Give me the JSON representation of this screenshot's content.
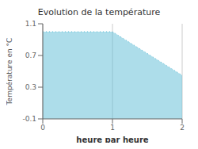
{
  "chart_data": {
    "type": "area",
    "title": "Evolution de la température",
    "xlabel": "heure par heure",
    "ylabel": "Température en °C",
    "x": [
      0,
      1,
      2
    ],
    "values": [
      1.0,
      1.0,
      0.45
    ],
    "color": "#5bbcd6",
    "line_style": "dotted",
    "xlim": [
      0,
      2
    ],
    "ylim": [
      -0.1,
      1.1
    ],
    "xticks": [
      0,
      1,
      2
    ],
    "yticks": [
      -0.1,
      0.3,
      0.7,
      1.1
    ],
    "grid": "x"
  }
}
